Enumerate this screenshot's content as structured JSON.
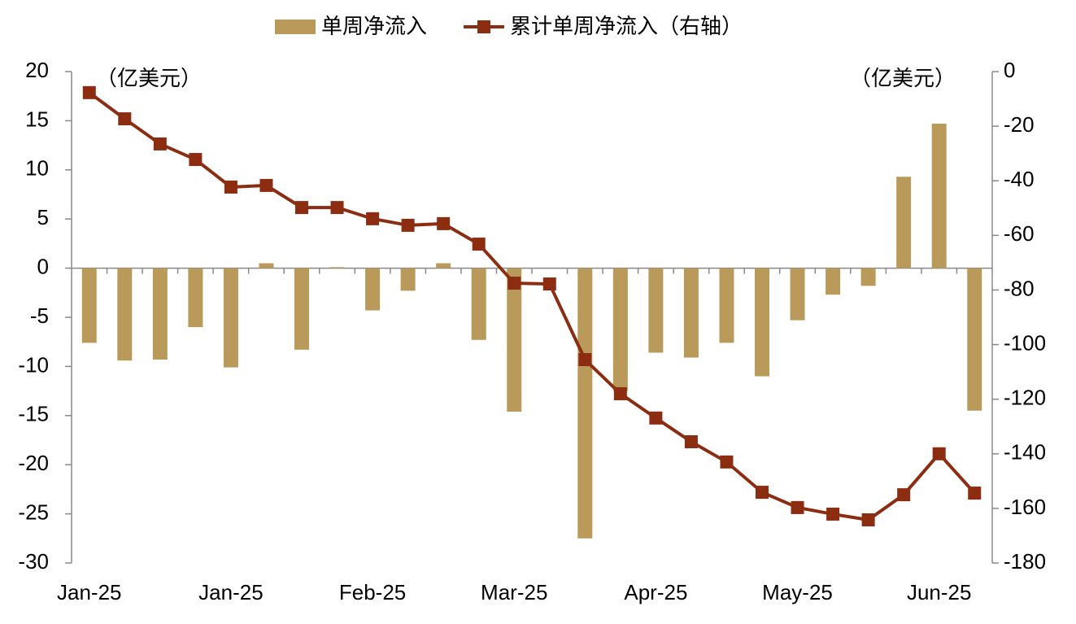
{
  "chart_data": {
    "type": "bar",
    "legend_position": "top",
    "y_unit_label": "（亿美元）",
    "y2_unit_label": "（亿美元）",
    "categories": [
      "Jan-25",
      null,
      null,
      null,
      "Jan-25",
      null,
      null,
      null,
      "Feb-25",
      null,
      null,
      null,
      "Mar-25",
      null,
      null,
      null,
      "Apr-25",
      null,
      null,
      null,
      "May-25",
      null,
      null,
      null,
      "Jun-25",
      null
    ],
    "series": [
      {
        "name": "单周净流入",
        "type": "bar",
        "color": "#b99a5b",
        "values": [
          -7.6,
          -9.4,
          -9.3,
          -6.0,
          -10.1,
          0.5,
          -8.3,
          0.1,
          -4.3,
          -2.3,
          0.5,
          -7.3,
          -14.6,
          0,
          -27.5,
          -12.5,
          -8.6,
          -9.1,
          -7.6,
          -11.0,
          -5.3,
          -2.7,
          -1.8,
          9.3,
          14.7,
          -14.5
        ]
      },
      {
        "name": "累计单周净流入（右轴）",
        "type": "line",
        "axis": "y2",
        "color": "#8c2d12",
        "values": [
          -7.7,
          -17.3,
          -26.5,
          -32.2,
          -42.3,
          -41.7,
          -49.8,
          -49.8,
          -53.9,
          -56.3,
          -55.7,
          -63.2,
          -77.5,
          -77.8,
          -105.5,
          -118.0,
          -126.9,
          -135.6,
          -143.0,
          -154.1,
          -159.7,
          -162.1,
          -164.2,
          -155.0,
          -140.0,
          -154.4
        ]
      }
    ],
    "ylim": [
      -30,
      20
    ],
    "yticks": [
      20,
      15,
      10,
      5,
      0,
      -5,
      -10,
      -15,
      -20,
      -25,
      -30
    ],
    "y2lim": [
      -180,
      0
    ],
    "y2ticks": [
      0,
      -20,
      -40,
      -60,
      -80,
      -100,
      -120,
      -140,
      -160,
      -180
    ]
  }
}
